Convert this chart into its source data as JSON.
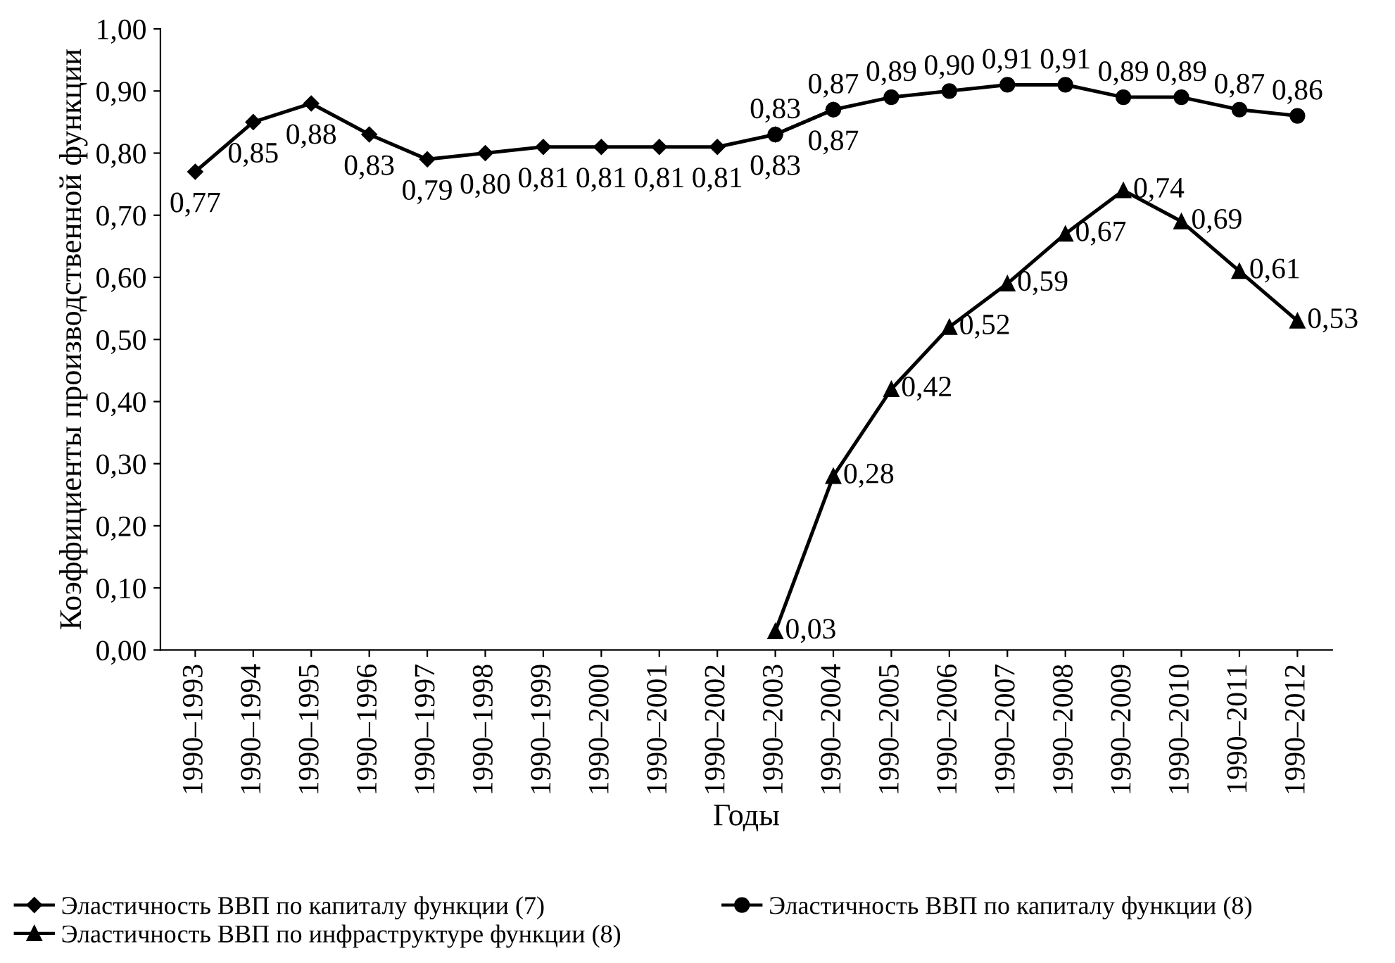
{
  "chart_data": {
    "type": "line",
    "xlabel": "Годы",
    "ylabel": "Коэффициенты производственной функции",
    "categories": [
      "1990–1993",
      "1990–1994",
      "1990–1995",
      "1990–1996",
      "1990–1997",
      "1990–1998",
      "1990–1999",
      "1990–2000",
      "1990–2001",
      "1990–2002",
      "1990–2003",
      "1990–2004",
      "1990–2005",
      "1990–2006",
      "1990–2007",
      "1990–2008",
      "1990–2009",
      "1990–2010",
      "1990–2011",
      "1990–2012"
    ],
    "series": [
      {
        "name": "Эластичность ВВП по капиталу функции (7)",
        "color": "#000000",
        "marker": "diamond",
        "values": [
          0.77,
          0.85,
          0.88,
          0.83,
          0.79,
          0.8,
          0.81,
          0.81,
          0.81,
          0.81,
          0.83,
          0.87,
          null,
          null,
          null,
          null,
          null,
          null,
          null,
          null
        ],
        "value_labels": [
          "0,77",
          "0,85",
          "0,88",
          "0,83",
          "0,79",
          "0,80",
          "0,81",
          "0,81",
          "0,81",
          "0,81",
          "0,83",
          "0,87",
          null,
          null,
          null,
          null,
          null,
          null,
          null,
          null
        ]
      },
      {
        "name": "Эластичность ВВП по капиталу функции (8)",
        "color": "#000000",
        "marker": "circle",
        "values": [
          null,
          null,
          null,
          null,
          null,
          null,
          null,
          null,
          null,
          null,
          0.83,
          0.87,
          0.89,
          0.9,
          0.91,
          0.91,
          0.89,
          0.89,
          0.87,
          0.86
        ],
        "value_labels": [
          null,
          null,
          null,
          null,
          null,
          null,
          null,
          null,
          null,
          null,
          "0,83",
          "0,87",
          "0,89",
          "0,90",
          "0,91",
          "0,91",
          "0,89",
          "0,89",
          "0,87",
          "0,86"
        ]
      },
      {
        "name": "Эластичность ВВП по инфраструктуре функции (8)",
        "color": "#000000",
        "marker": "triangle",
        "values": [
          null,
          null,
          null,
          null,
          null,
          null,
          null,
          null,
          null,
          null,
          0.03,
          0.28,
          0.42,
          0.52,
          0.59,
          0.67,
          0.74,
          0.69,
          0.61,
          0.53
        ],
        "value_labels": [
          null,
          null,
          null,
          null,
          null,
          null,
          null,
          null,
          null,
          null,
          "0,03",
          "0,28",
          "0,42",
          "0,52",
          "0,59",
          "0,67",
          "0,74",
          "0,69",
          "0,61",
          "0,53"
        ]
      }
    ],
    "ylim": [
      0,
      1
    ],
    "yticks": [
      {
        "value": 0,
        "label": "0,00"
      },
      {
        "value": 0.1,
        "label": "0,10"
      },
      {
        "value": 0.2,
        "label": "0,20"
      },
      {
        "value": 0.3,
        "label": "0,30"
      },
      {
        "value": 0.4,
        "label": "0,40"
      },
      {
        "value": 0.5,
        "label": "0,50"
      },
      {
        "value": 0.6,
        "label": "0,60"
      },
      {
        "value": 0.7,
        "label": "0,70"
      },
      {
        "value": 0.8,
        "label": "0,80"
      },
      {
        "value": 0.9,
        "label": "0,90"
      },
      {
        "value": 1,
        "label": "1,00"
      }
    ],
    "legend": "bottom",
    "grid": false,
    "line_style": "solid"
  }
}
